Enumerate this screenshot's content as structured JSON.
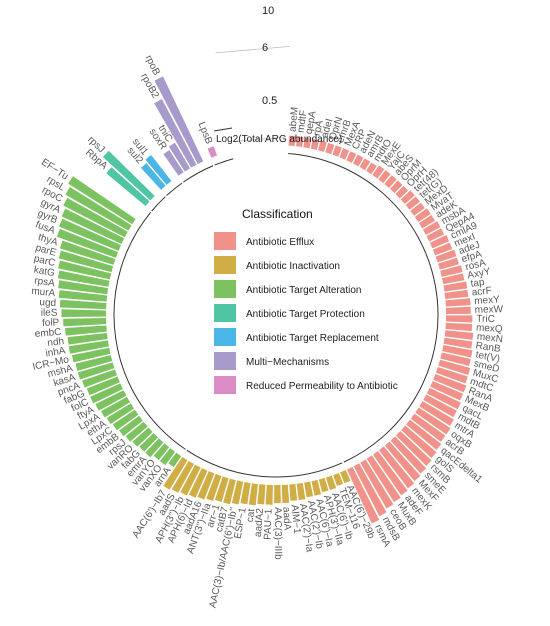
{
  "chart_data": {
    "type": "circular-bar",
    "radial_axis_title": "Log2(Total ARG abundance)",
    "radial_tick_labels": [
      "0.5",
      "6",
      "10"
    ],
    "radial_ticks": [
      0.5,
      6,
      10
    ],
    "radial_range": [
      0,
      10
    ],
    "legend": {
      "title": "Classification",
      "placement": "center"
    },
    "classes": [
      {
        "name": "Antibiotic Efflux",
        "color": "#F0928A"
      },
      {
        "name": "Antibiotic Inactivation",
        "color": "#D1AE45"
      },
      {
        "name": "Antibiotic Target Alteration",
        "color": "#7CC260"
      },
      {
        "name": "Antibiotic Target Protection",
        "color": "#4FC5A4"
      },
      {
        "name": "Antibiotic Target Replacement",
        "color": "#4AB6E6"
      },
      {
        "name": "Multi−Mechanisms",
        "color": "#A89BCB"
      },
      {
        "name": "Reduced Permeability to Antibiotic",
        "color": "#DB8CC4"
      }
    ],
    "genes": [
      {
        "name": "abeM",
        "class": 0,
        "value": 0.6
      },
      {
        "name": "mdtF",
        "class": 0,
        "value": 0.6
      },
      {
        "name": "qepA",
        "class": 0,
        "value": 0.6
      },
      {
        "name": "rpA",
        "class": 0,
        "value": 0.6
      },
      {
        "name": "adeI",
        "class": 0,
        "value": 0.6
      },
      {
        "name": "OprN",
        "class": 0,
        "value": 0.6
      },
      {
        "name": "emrB",
        "class": 0,
        "value": 0.6
      },
      {
        "name": "MexA",
        "class": 0,
        "value": 0.6
      },
      {
        "name": "CRP",
        "class": 0,
        "value": 0.6
      },
      {
        "name": "adeN",
        "class": 0,
        "value": 0.6
      },
      {
        "name": "amrB",
        "class": 0,
        "value": 0.6
      },
      {
        "name": "mdtO",
        "class": 0,
        "value": 0.6
      },
      {
        "name": "MexE",
        "class": 0,
        "value": 0.7
      },
      {
        "name": "YajC",
        "class": 0,
        "value": 0.7
      },
      {
        "name": "abeS",
        "class": 0,
        "value": 0.7
      },
      {
        "name": "OprM",
        "class": 0,
        "value": 0.7
      },
      {
        "name": "OprH",
        "class": 0,
        "value": 0.7
      },
      {
        "name": "tet(48)",
        "class": 0,
        "value": 0.8
      },
      {
        "name": "tet(G)",
        "class": 0,
        "value": 0.8
      },
      {
        "name": "MexD",
        "class": 0,
        "value": 0.8
      },
      {
        "name": "MvaT",
        "class": 0,
        "value": 0.9
      },
      {
        "name": "adeK",
        "class": 0,
        "value": 0.9
      },
      {
        "name": "msbA",
        "class": 0,
        "value": 1.0
      },
      {
        "name": "QepA4",
        "class": 0,
        "value": 1.0
      },
      {
        "name": "cmlA9",
        "class": 0,
        "value": 1.1
      },
      {
        "name": "mexI",
        "class": 0,
        "value": 1.1
      },
      {
        "name": "adeJ",
        "class": 0,
        "value": 1.2
      },
      {
        "name": "efpA",
        "class": 0,
        "value": 1.2
      },
      {
        "name": "rosA",
        "class": 0,
        "value": 1.3
      },
      {
        "name": "AxyY",
        "class": 0,
        "value": 1.3
      },
      {
        "name": "tap",
        "class": 0,
        "value": 1.4
      },
      {
        "name": "acrF",
        "class": 0,
        "value": 1.4
      },
      {
        "name": "mexY",
        "class": 0,
        "value": 1.5
      },
      {
        "name": "mexW",
        "class": 0,
        "value": 1.5
      },
      {
        "name": "TriC",
        "class": 0,
        "value": 1.6
      },
      {
        "name": "mexQ",
        "class": 0,
        "value": 1.6
      },
      {
        "name": "mexN",
        "class": 0,
        "value": 1.7
      },
      {
        "name": "RanB",
        "class": 0,
        "value": 1.7
      },
      {
        "name": "tet(V)",
        "class": 0,
        "value": 1.8
      },
      {
        "name": "smeD",
        "class": 0,
        "value": 1.8
      },
      {
        "name": "MuxC",
        "class": 0,
        "value": 1.9
      },
      {
        "name": "mdtC",
        "class": 0,
        "value": 1.9
      },
      {
        "name": "RanA",
        "class": 0,
        "value": 2.0
      },
      {
        "name": "MexB",
        "class": 0,
        "value": 2.0
      },
      {
        "name": "qacL",
        "class": 0,
        "value": 2.1
      },
      {
        "name": "mdtB",
        "class": 0,
        "value": 2.1
      },
      {
        "name": "mtrA",
        "class": 0,
        "value": 2.2
      },
      {
        "name": "oqxB",
        "class": 0,
        "value": 2.3
      },
      {
        "name": "acrB",
        "class": 0,
        "value": 2.3
      },
      {
        "name": "qacEdelta1",
        "class": 0,
        "value": 2.4
      },
      {
        "name": "golS",
        "class": 0,
        "value": 2.5
      },
      {
        "name": "rsmB",
        "class": 0,
        "value": 2.6
      },
      {
        "name": "smeE",
        "class": 0,
        "value": 2.7
      },
      {
        "name": "MexF",
        "class": 0,
        "value": 2.8
      },
      {
        "name": "mexK",
        "class": 0,
        "value": 2.9
      },
      {
        "name": "adeF",
        "class": 0,
        "value": 3.0
      },
      {
        "name": "MuxB",
        "class": 0,
        "value": 3.1
      },
      {
        "name": "ceoB",
        "class": 0,
        "value": 3.2
      },
      {
        "name": "mdsB",
        "class": 0,
        "value": 3.4
      },
      {
        "name": "rsmA",
        "class": 0,
        "value": 3.6
      },
      {
        "name": "AAC(6')−29b",
        "class": 1,
        "value": 0.7
      },
      {
        "name": "TEM−116",
        "class": 1,
        "value": 0.7
      },
      {
        "name": "AAC(6')−Ib",
        "class": 1,
        "value": 0.8
      },
      {
        "name": "APH(3')−IIa",
        "class": 1,
        "value": 0.8
      },
      {
        "name": "AAC(6')−Ia",
        "class": 1,
        "value": 0.9
      },
      {
        "name": "AAC(2')−Ib",
        "class": 1,
        "value": 0.9
      },
      {
        "name": "AAC(2')−Ia",
        "class": 1,
        "value": 1.0
      },
      {
        "name": "AIM−1",
        "class": 1,
        "value": 1.0
      },
      {
        "name": "aadA",
        "class": 1,
        "value": 1.1
      },
      {
        "name": "AAC(3)−IIIb",
        "class": 1,
        "value": 1.1
      },
      {
        "name": "PAU−1",
        "class": 1,
        "value": 1.2
      },
      {
        "name": "aadA2",
        "class": 1,
        "value": 1.2
      },
      {
        "name": "cat",
        "class": 1,
        "value": 1.3
      },
      {
        "name": "ESP−1",
        "class": 1,
        "value": 1.3
      },
      {
        "name": "AAC(3)−Ib/AAC(6')−Ib''",
        "class": 1,
        "value": 1.4
      },
      {
        "name": "catB7",
        "class": 1,
        "value": 1.5
      },
      {
        "name": "arr−1",
        "class": 1,
        "value": 1.5
      },
      {
        "name": "ANT(3'')−IIa",
        "class": 1,
        "value": 1.6
      },
      {
        "name": "aadA16",
        "class": 1,
        "value": 1.7
      },
      {
        "name": "APH(6)−Id",
        "class": 1,
        "value": 1.8
      },
      {
        "name": "APH(3'')−Ib",
        "class": 1,
        "value": 1.9
      },
      {
        "name": "aadS",
        "class": 1,
        "value": 2.0
      },
      {
        "name": "AAC(6')−Ib7",
        "class": 1,
        "value": 2.1
      },
      {
        "name": "arnA",
        "class": 2,
        "value": 0.8
      },
      {
        "name": "vanXO",
        "class": 2,
        "value": 1.0
      },
      {
        "name": "vanYO",
        "class": 2,
        "value": 1.0
      },
      {
        "name": "emrA",
        "class": 2,
        "value": 1.2
      },
      {
        "name": "fabG",
        "class": 2,
        "value": 1.2
      },
      {
        "name": "vanRO",
        "class": 2,
        "value": 1.3
      },
      {
        "name": "rpsJ",
        "class": 2,
        "value": 1.4
      },
      {
        "name": "embB",
        "class": 2,
        "value": 1.5
      },
      {
        "name": "LpxC",
        "class": 2,
        "value": 1.6
      },
      {
        "name": "ethA",
        "class": 2,
        "value": 1.7
      },
      {
        "name": "LpxA",
        "class": 2,
        "value": 1.8
      },
      {
        "name": "ftyA",
        "class": 2,
        "value": 1.9
      },
      {
        "name": "folC",
        "class": 2,
        "value": 2.0
      },
      {
        "name": "fabG",
        "class": 2,
        "value": 2.0
      },
      {
        "name": "pncA",
        "class": 2,
        "value": 2.1
      },
      {
        "name": "kasA",
        "class": 2,
        "value": 2.2
      },
      {
        "name": "mshA",
        "class": 2,
        "value": 2.2
      },
      {
        "name": "ICR−Mo",
        "class": 2,
        "value": 2.3
      },
      {
        "name": "inhA",
        "class": 2,
        "value": 2.4
      },
      {
        "name": "ndh",
        "class": 2,
        "value": 2.4
      },
      {
        "name": "embC",
        "class": 2,
        "value": 2.5
      },
      {
        "name": "folP",
        "class": 2,
        "value": 2.6
      },
      {
        "name": "ileS",
        "class": 2,
        "value": 2.7
      },
      {
        "name": "ugd",
        "class": 2,
        "value": 2.8
      },
      {
        "name": "murA",
        "class": 2,
        "value": 2.9
      },
      {
        "name": "rpsA",
        "class": 2,
        "value": 3.0
      },
      {
        "name": "katG",
        "class": 2,
        "value": 3.1
      },
      {
        "name": "parC",
        "class": 2,
        "value": 3.2
      },
      {
        "name": "parE",
        "class": 2,
        "value": 3.3
      },
      {
        "name": "thyA",
        "class": 2,
        "value": 3.4
      },
      {
        "name": "fusA",
        "class": 2,
        "value": 3.8
      },
      {
        "name": "gyrB",
        "class": 2,
        "value": 3.9
      },
      {
        "name": "gyrA",
        "class": 2,
        "value": 4.0
      },
      {
        "name": "rpoC",
        "class": 2,
        "value": 4.2
      },
      {
        "name": "rpsL",
        "class": 2,
        "value": 4.4
      },
      {
        "name": "EF−Tu",
        "class": 2,
        "value": 4.6
      },
      {
        "name": "",
        "class": 2,
        "value": 0.0
      },
      {
        "name": "",
        "class": 2,
        "value": 0.0
      },
      {
        "name": "RbpA",
        "class": 3,
        "value": 3.1
      },
      {
        "name": "rpsJ",
        "class": 3,
        "value": 3.9
      },
      {
        "name": "",
        "class": 3,
        "value": 0.0
      },
      {
        "name": "sul2",
        "class": 4,
        "value": 1.8
      },
      {
        "name": "sul1",
        "class": 4,
        "value": 2.0
      },
      {
        "name": "",
        "class": 4,
        "value": 0.0
      },
      {
        "name": "soxR",
        "class": 5,
        "value": 1.6
      },
      {
        "name": "tniC",
        "class": 5,
        "value": 1.8
      },
      {
        "name": "rpoB2",
        "class": 5,
        "value": 4.5
      },
      {
        "name": "rpoB",
        "class": 5,
        "value": 5.7
      },
      {
        "name": "",
        "class": 5,
        "value": 0.0
      },
      {
        "name": "LpsB",
        "class": 6,
        "value": 0.6
      },
      {
        "name": "",
        "class": 6,
        "value": 0.0
      },
      {
        "name": "",
        "class": 6,
        "value": 0.0
      }
    ]
  }
}
